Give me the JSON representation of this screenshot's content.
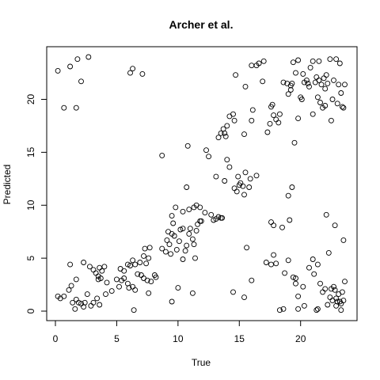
{
  "chart_data": {
    "type": "scatter",
    "title": "Archer et al.",
    "xlabel": "True",
    "ylabel": "Predicted",
    "xlim": [
      0,
      23.7
    ],
    "ylim": [
      0,
      24
    ],
    "xticks": [
      0,
      5,
      10,
      15,
      20
    ],
    "yticks": [
      0,
      5,
      10,
      15,
      20
    ],
    "grid": false,
    "points": [
      [
        0.2,
        22.7
      ],
      [
        1.2,
        23.1
      ],
      [
        1.8,
        23.8
      ],
      [
        2.7,
        24.0
      ],
      [
        0.7,
        19.2
      ],
      [
        1.7,
        19.2
      ],
      [
        2.1,
        21.7
      ],
      [
        6.1,
        22.5
      ],
      [
        6.3,
        22.9
      ],
      [
        7.1,
        22.4
      ],
      [
        0.2,
        1.4
      ],
      [
        0.4,
        1.2
      ],
      [
        0.7,
        1.4
      ],
      [
        1.1,
        2.0
      ],
      [
        1.3,
        2.4
      ],
      [
        1.4,
        0.8
      ],
      [
        1.6,
        0.2
      ],
      [
        1.7,
        1.1
      ],
      [
        1.9,
        0.8
      ],
      [
        2.1,
        0.7
      ],
      [
        2.3,
        0.4
      ],
      [
        2.4,
        0.8
      ],
      [
        2.6,
        1.6
      ],
      [
        2.9,
        0.5
      ],
      [
        3.1,
        0.8
      ],
      [
        3.4,
        1.2
      ],
      [
        3.6,
        0.6
      ],
      [
        1.2,
        4.4
      ],
      [
        1.7,
        3.0
      ],
      [
        2.3,
        4.6
      ],
      [
        2.8,
        4.2
      ],
      [
        3.1,
        3.9
      ],
      [
        3.3,
        3.6
      ],
      [
        3.5,
        3.3
      ],
      [
        3.6,
        4.1
      ],
      [
        3.8,
        3.8
      ],
      [
        4.0,
        4.2
      ],
      [
        3.5,
        3.0
      ],
      [
        3.7,
        3.1
      ],
      [
        4.2,
        2.7
      ],
      [
        4.6,
        1.9
      ],
      [
        4.1,
        1.6
      ],
      [
        5.0,
        3.0
      ],
      [
        5.2,
        2.3
      ],
      [
        5.4,
        2.9
      ],
      [
        5.6,
        3.1
      ],
      [
        5.9,
        2.6
      ],
      [
        6.0,
        2.2
      ],
      [
        6.3,
        2.3
      ],
      [
        6.5,
        2.0
      ],
      [
        6.7,
        3.5
      ],
      [
        5.3,
        4.0
      ],
      [
        5.6,
        3.8
      ],
      [
        5.9,
        4.4
      ],
      [
        6.1,
        4.3
      ],
      [
        6.3,
        4.8
      ],
      [
        6.5,
        4.4
      ],
      [
        6.9,
        4.6
      ],
      [
        7.2,
        5.2
      ],
      [
        7.4,
        4.5
      ],
      [
        7.6,
        5.0
      ],
      [
        7.3,
        5.9
      ],
      [
        7.7,
        6.0
      ],
      [
        7.0,
        3.4
      ],
      [
        7.2,
        3.1
      ],
      [
        7.5,
        2.9
      ],
      [
        7.6,
        1.7
      ],
      [
        7.8,
        2.8
      ],
      [
        8.1,
        3.4
      ],
      [
        8.2,
        3.2
      ],
      [
        6.4,
        0.1
      ],
      [
        8.7,
        5.9
      ],
      [
        9.0,
        5.6
      ],
      [
        9.1,
        6.7
      ],
      [
        9.3,
        6.3
      ],
      [
        9.2,
        7.5
      ],
      [
        9.5,
        7.3
      ],
      [
        9.6,
        8.3
      ],
      [
        9.7,
        7.1
      ],
      [
        9.4,
        5.4
      ],
      [
        9.9,
        5.8
      ],
      [
        10.1,
        6.6
      ],
      [
        10.2,
        7.7
      ],
      [
        10.4,
        7.8
      ],
      [
        10.6,
        5.7
      ],
      [
        10.7,
        6.2
      ],
      [
        10.9,
        7.3
      ],
      [
        11.0,
        7.8
      ],
      [
        11.2,
        6.8
      ],
      [
        11.3,
        6.3
      ],
      [
        11.4,
        5.0
      ],
      [
        11.5,
        7.6
      ],
      [
        11.6,
        8.2
      ],
      [
        11.8,
        8.5
      ],
      [
        11.9,
        8.5
      ],
      [
        9.5,
        9.0
      ],
      [
        9.8,
        9.8
      ],
      [
        10.4,
        9.4
      ],
      [
        10.9,
        9.6
      ],
      [
        11.3,
        9.8
      ],
      [
        11.5,
        10.0
      ],
      [
        11.8,
        9.8
      ],
      [
        12.2,
        9.3
      ],
      [
        12.7,
        9.1
      ],
      [
        12.9,
        8.6
      ],
      [
        13.1,
        8.7
      ],
      [
        13.3,
        8.9
      ],
      [
        13.5,
        8.8
      ],
      [
        13.6,
        8.8
      ],
      [
        10.4,
        4.9
      ],
      [
        10.7,
        11.7
      ],
      [
        11.2,
        1.7
      ],
      [
        9.5,
        0.9
      ],
      [
        10.0,
        2.2
      ],
      [
        8.7,
        14.7
      ],
      [
        10.8,
        15.6
      ],
      [
        12.3,
        15.2
      ],
      [
        12.5,
        14.6
      ],
      [
        13.1,
        12.7
      ],
      [
        13.8,
        12.3
      ],
      [
        14.0,
        14.3
      ],
      [
        14.2,
        13.6
      ],
      [
        14.6,
        11.6
      ],
      [
        14.8,
        11.3
      ],
      [
        15.0,
        11.9
      ],
      [
        15.1,
        12.1
      ],
      [
        15.3,
        11.8
      ],
      [
        15.4,
        11.0
      ],
      [
        15.5,
        13.1
      ],
      [
        15.8,
        11.7
      ],
      [
        15.9,
        12.5
      ],
      [
        16.4,
        12.8
      ],
      [
        14.9,
        12.7
      ],
      [
        13.3,
        16.4
      ],
      [
        13.5,
        16.8
      ],
      [
        13.7,
        17.2
      ],
      [
        13.8,
        16.8
      ],
      [
        13.9,
        16.5
      ],
      [
        14.0,
        17.5
      ],
      [
        14.2,
        18.4
      ],
      [
        14.5,
        18.6
      ],
      [
        14.6,
        18.0
      ],
      [
        15.4,
        16.7
      ],
      [
        15.5,
        21.2
      ],
      [
        14.7,
        22.3
      ],
      [
        16.0,
        23.2
      ],
      [
        16.4,
        23.2
      ],
      [
        16.6,
        23.4
      ],
      [
        17.0,
        23.6
      ],
      [
        17.5,
        17.7
      ],
      [
        17.6,
        19.3
      ],
      [
        17.7,
        19.5
      ],
      [
        17.8,
        18.5
      ],
      [
        18.0,
        18.1
      ],
      [
        18.2,
        17.8
      ],
      [
        18.3,
        18.6
      ],
      [
        18.6,
        21.6
      ],
      [
        18.9,
        21.5
      ],
      [
        19.0,
        20.5
      ],
      [
        19.2,
        21.3
      ],
      [
        19.3,
        21.5
      ],
      [
        19.4,
        23.5
      ],
      [
        19.6,
        22.5
      ],
      [
        19.8,
        23.7
      ],
      [
        20.0,
        20.2
      ],
      [
        19.8,
        18.2
      ],
      [
        20.2,
        22.4
      ],
      [
        20.3,
        21.6
      ],
      [
        20.5,
        21.8
      ],
      [
        20.6,
        21.5
      ],
      [
        20.8,
        23.0
      ],
      [
        21.0,
        23.6
      ],
      [
        21.2,
        21.6
      ],
      [
        21.3,
        22.1
      ],
      [
        21.5,
        21.8
      ],
      [
        21.7,
        21.4
      ],
      [
        21.9,
        22.0
      ],
      [
        22.1,
        22.3
      ],
      [
        22.2,
        21.5
      ],
      [
        22.4,
        23.8
      ],
      [
        22.6,
        20.0
      ],
      [
        22.7,
        21.8
      ],
      [
        22.9,
        23.8
      ],
      [
        23.1,
        21.4
      ],
      [
        23.3,
        20.6
      ],
      [
        23.5,
        19.2
      ],
      [
        23.6,
        21.4
      ],
      [
        23.2,
        23.4
      ],
      [
        21.6,
        19.7
      ],
      [
        21.4,
        20.2
      ],
      [
        21.8,
        19.2
      ],
      [
        22.0,
        19.4
      ],
      [
        21.5,
        23.6
      ],
      [
        22.0,
        21.0
      ],
      [
        16.1,
        19.0
      ],
      [
        16.9,
        21.7
      ],
      [
        17.3,
        16.9
      ],
      [
        16.0,
        18.0
      ],
      [
        20.7,
        21.2
      ],
      [
        19.5,
        15.9
      ],
      [
        19.2,
        20.9
      ],
      [
        21.0,
        18.6
      ],
      [
        20.1,
        20.0
      ],
      [
        22.5,
        18.0
      ],
      [
        23.4,
        19.3
      ],
      [
        23.0,
        19.6
      ],
      [
        15.6,
        6.0
      ],
      [
        16.0,
        2.9
      ],
      [
        15.4,
        1.3
      ],
      [
        14.5,
        1.8
      ],
      [
        17.2,
        4.6
      ],
      [
        17.6,
        4.4
      ],
      [
        17.8,
        5.3
      ],
      [
        18.0,
        4.5
      ],
      [
        17.6,
        8.4
      ],
      [
        17.8,
        8.1
      ],
      [
        18.5,
        7.9
      ],
      [
        18.6,
        0.2
      ],
      [
        18.3,
        0.1
      ],
      [
        18.7,
        3.6
      ],
      [
        19.0,
        10.9
      ],
      [
        19.3,
        11.7
      ],
      [
        19.1,
        8.6
      ],
      [
        19.0,
        4.8
      ],
      [
        19.4,
        3.2
      ],
      [
        19.6,
        3.1
      ],
      [
        19.6,
        2.6
      ],
      [
        19.8,
        1.4
      ],
      [
        19.8,
        0.2
      ],
      [
        20.2,
        2.3
      ],
      [
        20.7,
        4.1
      ],
      [
        21.0,
        4.9
      ],
      [
        21.1,
        3.5
      ],
      [
        21.3,
        0.1
      ],
      [
        21.4,
        0.2
      ],
      [
        21.6,
        2.6
      ],
      [
        21.8,
        1.8
      ],
      [
        22.0,
        2.1
      ],
      [
        22.2,
        0.6
      ],
      [
        22.4,
        1.3
      ],
      [
        22.6,
        1.0
      ],
      [
        22.7,
        2.3
      ],
      [
        22.8,
        2.0
      ],
      [
        22.9,
        1.2
      ],
      [
        23.0,
        0.9
      ],
      [
        23.1,
        1.6
      ],
      [
        23.3,
        0.7
      ],
      [
        23.4,
        1.8
      ],
      [
        23.5,
        1.0
      ],
      [
        23.2,
        0.9
      ],
      [
        22.9,
        0.5
      ],
      [
        22.5,
        2.1
      ],
      [
        22.3,
        5.5
      ],
      [
        22.1,
        9.1
      ],
      [
        23.5,
        6.7
      ],
      [
        23.6,
        2.8
      ],
      [
        21.4,
        4.4
      ],
      [
        22.8,
        8.1
      ],
      [
        20.3,
        0.5
      ],
      [
        23.3,
        0.1
      ]
    ]
  }
}
